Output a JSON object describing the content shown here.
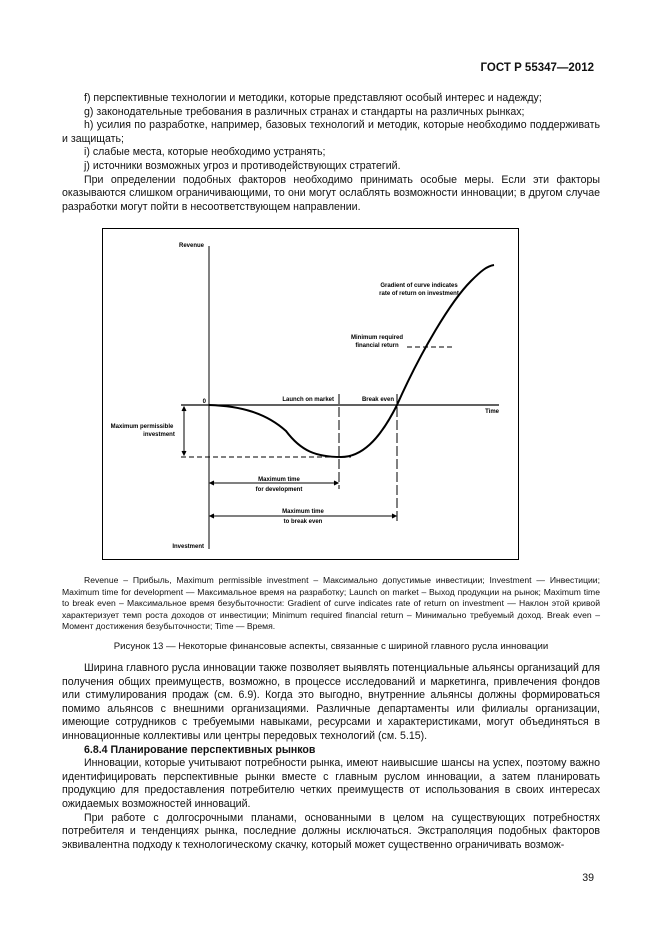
{
  "header": {
    "standard": "ГОСТ Р 55347—2012"
  },
  "top_paragraphs": [
    "f) перспективные технологии и методики, которые представляют особый интерес и надежду;",
    "g) законодательные требования в различных странах и стандарты на различных рынках;",
    "h) усилия по разработке, например, базовых технологий и методик, которые необходимо поддерживать и защищать;",
    "i) слабые места, которые необходимо устранять;",
    "j) источники возможных угроз и противодействующих стратегий.",
    "При определении подобных факторов необходимо принимать особые меры. Если эти факторы оказываются слишком ограничивающими, то они могут ослаблять возможности инновации; в другом случае разработки могут пойти в несоответствующем направлении."
  ],
  "figure": {
    "labels": {
      "revenue": "Revenue",
      "zero": "0",
      "time": "Time",
      "investment": "Investment",
      "gradient_1": "Gradient of curve indicates",
      "gradient_2": "rate of return on investment",
      "min_return_1": "Minimum required",
      "min_return_2": "financial return",
      "launch": "Launch on market",
      "break_even": "Break even",
      "max_invest_1": "Maximum permissible",
      "max_invest_2": "investment",
      "max_dev_1": "Maximum time",
      "max_dev_2": "for development",
      "max_be_1": "Maximum time",
      "max_be_2": "to break even"
    },
    "legend": "Revenue – Прибыль, Maximum permissible investment – Максимально допустимые инвестиции; Investment — Инвестиции; Maximum time for development — Максимальное время на разработку; Launch on market – Выход продукции на рынок; Maximum time to break even – Максимальное время безубыточности: Gradient of curve indicates rate of return on investment — Наклон этой кривой характеризует темп роста доходов от инвестиции; Minimum required financial return – Минимально требуемый доход. Break even – Момент достижения безубыточности; Time — Время.",
    "caption": "Рисунок 13 — Некоторые финансовые аспекты, связанные с шириной главного русла инновации"
  },
  "bottom": {
    "p1": "Ширина главного русла инновации также позволяет выявлять потенциальные альянсы организаций для получения общих преимуществ, возможно, в процессе исследований и маркетинга, привлечения фондов или стимулирования продаж (см. 6.9). Когда это выгодно, внутренние альянсы должны формироваться помимо альянсов с внешними организациями. Различные департаменты или филиалы организации, имеющие сотрудников с требуемыми навыками, ресурсами и характеристиками, могут объединяться в инновационные коллективы или центры передовых технологий (см. 5.15).",
    "heading": "6.8.4 Планирование перспективных рынков",
    "p2": "Инновации, которые учитывают потребности рынка, имеют наивысшие шансы на успех, поэтому важно идентифицировать перспективные рынки вместе с главным руслом инновации, а затем планировать продукцию для предоставления потребителю четких преимуществ от использования в своих интересах ожидаемых возможностей инноваций.",
    "p3": "При работе с долгосрочными планами, основанными в целом на существующих потребностях потребителя и тенденциях рынка, последние должны исключаться. Экстраполяция подобных факторов эквивалентна подходу к технологическому скачку, который может существенно ограничивать возмож-"
  },
  "page_number": "39"
}
